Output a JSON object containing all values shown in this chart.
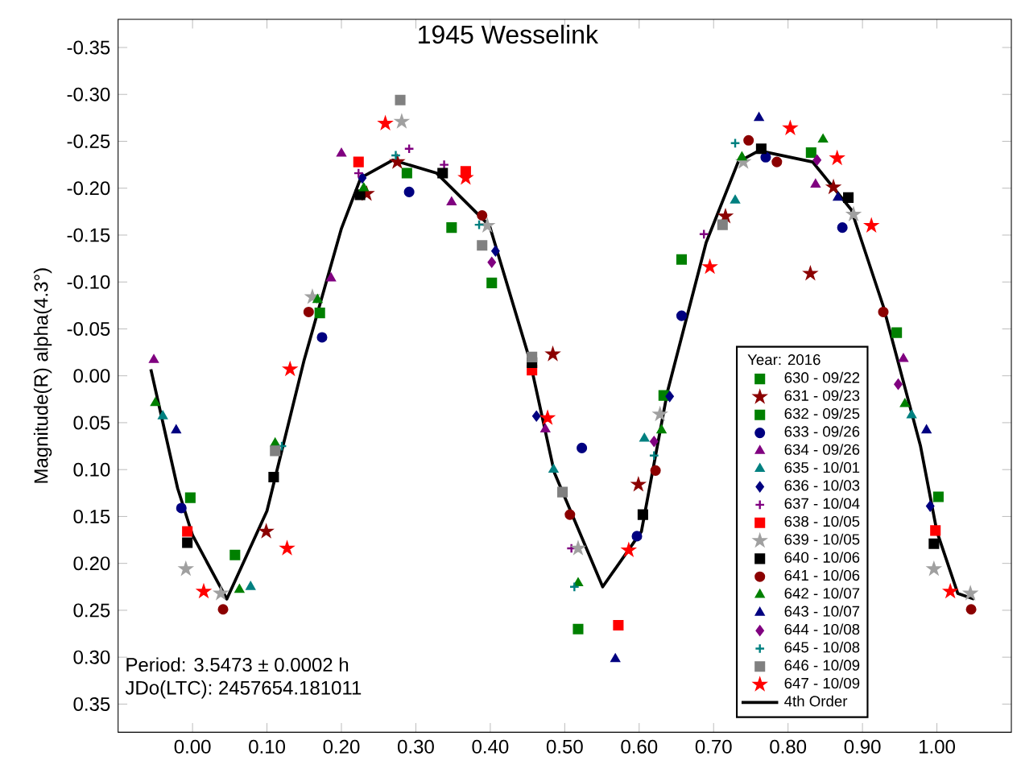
{
  "chart_data": {
    "type": "scatter",
    "title": "1945 Wesselink",
    "ylabel": "Magnitude(R) alpha(4.3°)",
    "legend_title": "Year: 2016",
    "legend": "bottom right",
    "grid": false,
    "annotations": [
      "Period: 3.5473 ± 0.0002 h",
      "JDo(LTC): 2457654.181011"
    ],
    "xlim": [
      -0.1,
      1.1
    ],
    "ylim": [
      0.38,
      -0.38
    ],
    "xticks": [
      {
        "value": 0,
        "label": "0.00"
      },
      {
        "value": 0.1,
        "label": "0.10"
      },
      {
        "value": 0.2,
        "label": "0.20"
      },
      {
        "value": 0.3,
        "label": "0.30"
      },
      {
        "value": 0.4,
        "label": "0.40"
      },
      {
        "value": 0.5,
        "label": "0.50"
      },
      {
        "value": 0.6,
        "label": "0.60"
      },
      {
        "value": 0.7,
        "label": "0.70"
      },
      {
        "value": 0.8,
        "label": "0.80"
      },
      {
        "value": 0.9,
        "label": "0.90"
      },
      {
        "value": 1.0,
        "label": "1.00"
      }
    ],
    "yticks": [
      {
        "value": -0.35,
        "label": "-0.35"
      },
      {
        "value": -0.3,
        "label": "-0.30"
      },
      {
        "value": -0.25,
        "label": "-0.25"
      },
      {
        "value": -0.2,
        "label": "-0.20"
      },
      {
        "value": -0.15,
        "label": "-0.15"
      },
      {
        "value": -0.1,
        "label": "-0.10"
      },
      {
        "value": -0.05,
        "label": "-0.05"
      },
      {
        "value": 0,
        "label": "0.00"
      },
      {
        "value": 0.05,
        "label": "0.05"
      },
      {
        "value": 0.1,
        "label": "0.10"
      },
      {
        "value": 0.15,
        "label": "0.15"
      },
      {
        "value": 0.2,
        "label": "0.20"
      },
      {
        "value": 0.25,
        "label": "0.25"
      },
      {
        "value": 0.3,
        "label": "0.30"
      },
      {
        "value": 0.35,
        "label": "0.35"
      }
    ],
    "series": [
      {
        "name": "630 - 09/22",
        "color": "#008000",
        "marker": "square",
        "x": [
          -0.003,
          0.348,
          0.633,
          0.657,
          1.002
        ],
        "values": [
          0.13,
          -0.158,
          0.021,
          -0.124,
          0.129
        ]
      },
      {
        "name": "631 - 09/23",
        "color": "#8b0000",
        "marker": "star",
        "x": [
          0.099,
          0.234,
          0.275,
          0.484,
          0.599,
          0.716,
          0.83,
          0.861
        ],
        "values": [
          0.166,
          -0.194,
          -0.228,
          -0.023,
          0.116,
          -0.17,
          -0.109,
          -0.201
        ]
      },
      {
        "name": "632 - 09/25",
        "color": "#008000",
        "marker": "square",
        "x": [
          0.057,
          0.171,
          0.288,
          0.402,
          0.518,
          0.831,
          0.946
        ],
        "values": [
          0.191,
          -0.067,
          -0.216,
          -0.099,
          0.27,
          -0.238,
          -0.046
        ]
      },
      {
        "name": "633 - 09/26",
        "color": "#000080",
        "marker": "circle",
        "x": [
          -0.015,
          0.174,
          0.291,
          0.523,
          0.597,
          0.657,
          0.77,
          0.873
        ],
        "values": [
          0.141,
          -0.041,
          -0.196,
          0.077,
          0.171,
          -0.064,
          -0.233,
          -0.158
        ]
      },
      {
        "name": "634 - 09/26",
        "color": "#800080",
        "marker": "triangle",
        "x": [
          -0.052,
          0.186,
          0.2,
          0.348,
          0.474,
          0.837,
          0.955
        ],
        "values": [
          -0.017,
          -0.104,
          -0.237,
          -0.185,
          0.057,
          -0.204,
          -0.018
        ]
      },
      {
        "name": "635 - 10/01",
        "color": "#008080",
        "marker": "triangle",
        "x": [
          -0.04,
          0.078,
          0.485,
          0.607,
          0.729,
          0.966
        ],
        "values": [
          0.043,
          0.225,
          0.1,
          0.067,
          -0.187,
          0.042
        ]
      },
      {
        "name": "636 - 10/03",
        "color": "#000080",
        "marker": "diamond",
        "x": [
          0.228,
          0.407,
          0.462,
          0.641,
          0.991
        ],
        "values": [
          -0.211,
          -0.133,
          0.043,
          0.022,
          0.139
        ]
      },
      {
        "name": "637 - 10/04",
        "color": "#800080",
        "marker": "cross",
        "x": [
          0.223,
          0.291,
          0.338,
          0.509,
          0.687
        ],
        "values": [
          -0.216,
          -0.242,
          -0.225,
          0.184,
          -0.151
        ]
      },
      {
        "name": "638 - 10/05",
        "color": "#ff0000",
        "marker": "square",
        "x": [
          -0.007,
          0.223,
          0.367,
          0.456,
          0.572,
          0.998
        ],
        "values": [
          0.166,
          -0.228,
          -0.218,
          -0.006,
          0.266,
          0.165
        ]
      },
      {
        "name": "639 - 10/05",
        "color": "#a0a0a0",
        "marker": "star",
        "x": [
          -0.009,
          0.038,
          0.161,
          0.281,
          0.396,
          0.518,
          0.628,
          0.74,
          0.888,
          0.996,
          1.045
        ],
        "values": [
          0.206,
          0.232,
          -0.084,
          -0.271,
          -0.16,
          0.184,
          0.041,
          -0.228,
          -0.172,
          0.206,
          0.232
        ]
      },
      {
        "name": "640 - 10/06",
        "color": "#000000",
        "marker": "square",
        "x": [
          -0.007,
          0.109,
          0.225,
          0.336,
          0.456,
          0.605,
          0.764,
          0.881,
          0.996
        ],
        "values": [
          0.178,
          0.108,
          -0.193,
          -0.216,
          -0.014,
          0.148,
          -0.242,
          -0.19,
          0.179
        ]
      },
      {
        "name": "641 - 10/06",
        "color": "#8b0000",
        "marker": "circle",
        "x": [
          0.041,
          0.156,
          0.389,
          0.507,
          0.622,
          0.747,
          0.785,
          0.928,
          1.046
        ],
        "values": [
          0.249,
          -0.068,
          -0.171,
          0.148,
          0.101,
          -0.251,
          -0.228,
          -0.068,
          0.249
        ]
      },
      {
        "name": "642 - 10/07",
        "color": "#008000",
        "marker": "triangle",
        "x": [
          -0.05,
          0.063,
          0.111,
          0.168,
          0.23,
          0.518,
          0.63,
          0.738,
          0.847,
          0.957
        ],
        "values": [
          0.029,
          0.228,
          0.072,
          -0.081,
          -0.2,
          0.221,
          0.058,
          -0.233,
          -0.252,
          0.03
        ]
      },
      {
        "name": "643 - 10/07",
        "color": "#000080",
        "marker": "triangle",
        "x": [
          -0.022,
          0.568,
          0.761,
          0.867,
          0.986
        ],
        "values": [
          0.058,
          0.302,
          -0.275,
          -0.19,
          0.058
        ]
      },
      {
        "name": "644 - 10/08",
        "color": "#800080",
        "marker": "diamond",
        "x": [
          0.402,
          0.62,
          0.839,
          0.948
        ],
        "values": [
          -0.121,
          0.07,
          -0.23,
          0.009
        ]
      },
      {
        "name": "645 - 10/08",
        "color": "#008080",
        "marker": "cross",
        "x": [
          0.12,
          0.273,
          0.385,
          0.513,
          0.62,
          0.729
        ],
        "values": [
          0.075,
          -0.235,
          -0.161,
          0.225,
          0.085,
          -0.248
        ]
      },
      {
        "name": "646 - 10/09",
        "color": "#808080",
        "marker": "square",
        "x": [
          0.111,
          0.279,
          0.389,
          0.456,
          0.497,
          0.712
        ],
        "values": [
          0.08,
          -0.294,
          -0.139,
          -0.02,
          0.124,
          -0.161
        ]
      },
      {
        "name": "647 - 10/09",
        "color": "#ff0000",
        "marker": "star",
        "x": [
          0.015,
          0.127,
          0.131,
          0.259,
          0.367,
          0.477,
          0.586,
          0.695,
          0.803,
          0.866,
          0.912,
          1.018
        ],
        "values": [
          0.23,
          0.184,
          -0.007,
          -0.269,
          -0.211,
          0.045,
          0.186,
          -0.116,
          -0.264,
          -0.232,
          -0.16,
          0.23
        ]
      },
      {
        "name": "4th Order",
        "type": "line",
        "color": "#000000",
        "marker": "none",
        "x": [
          -0.056,
          -0.02,
          0.0,
          0.046,
          0.1,
          0.15,
          0.2,
          0.226,
          0.269,
          0.328,
          0.399,
          0.453,
          0.486,
          0.551,
          0.603,
          0.638,
          0.69,
          0.733,
          0.761,
          0.833,
          0.885,
          0.928,
          0.978,
          1.0,
          1.028,
          1.05
        ],
        "values": [
          -0.007,
          0.12,
          0.17,
          0.238,
          0.144,
          -0.017,
          -0.157,
          -0.211,
          -0.23,
          -0.216,
          -0.16,
          -0.017,
          0.103,
          0.225,
          0.166,
          0.017,
          -0.142,
          -0.228,
          -0.24,
          -0.228,
          -0.177,
          -0.074,
          0.075,
          0.166,
          0.232,
          0.238
        ]
      }
    ]
  }
}
